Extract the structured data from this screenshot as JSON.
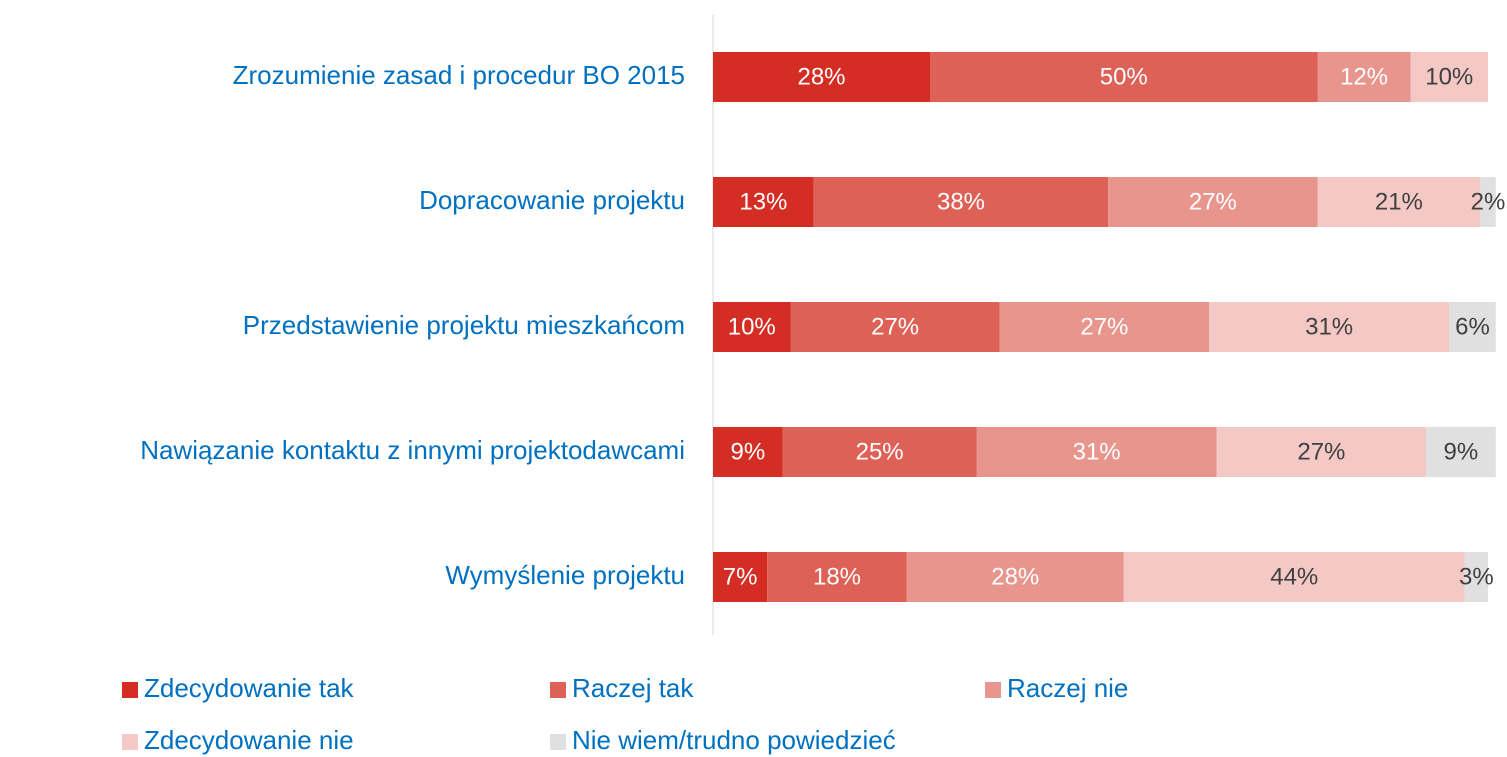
{
  "chart_data": {
    "type": "stacked-bar-horizontal",
    "categories": [
      "Zrozumienie zasad i procedur BO 2015",
      "Dopracowanie projektu",
      "Przedstawienie projektu mieszkańcom",
      "Nawiązanie kontaktu z innymi projektodawcami",
      "Wymyślenie projektu"
    ],
    "xlim": [
      0,
      100
    ],
    "series": [
      {
        "name": "Zdecydowanie tak",
        "color": "#d42e24",
        "label_color": "#ffffff",
        "values": [
          28,
          13,
          10,
          9,
          7
        ],
        "value_labels": [
          "28%",
          "13%",
          "10%",
          "9%",
          "7%"
        ]
      },
      {
        "name": "Raczej tak",
        "color": "#de6157",
        "label_color": "#ffffff",
        "values": [
          50,
          38,
          27,
          25,
          18
        ],
        "value_labels": [
          "50%",
          "38%",
          "27%",
          "25%",
          "18%"
        ]
      },
      {
        "name": "Raczej nie",
        "color": "#e8958e",
        "label_color": "#ffffff",
        "values": [
          12,
          27,
          27,
          31,
          28
        ],
        "value_labels": [
          "12%",
          "27%",
          "27%",
          "31%",
          "28%"
        ]
      },
      {
        "name": "Zdecydowanie nie",
        "color": "#f4c8c5",
        "label_color": "#404040",
        "values": [
          10,
          21,
          31,
          27,
          44
        ],
        "value_labels": [
          "10%",
          "21%",
          "31%",
          "27%",
          "44%"
        ]
      },
      {
        "name": "Nie wiem/trudno powiedzieć",
        "color": "#e0e0e0",
        "label_color": "#404040",
        "values": [
          null,
          2,
          6,
          9,
          3
        ],
        "value_labels": [
          null,
          "2%",
          "6%",
          "9%",
          "3%"
        ]
      }
    ]
  }
}
